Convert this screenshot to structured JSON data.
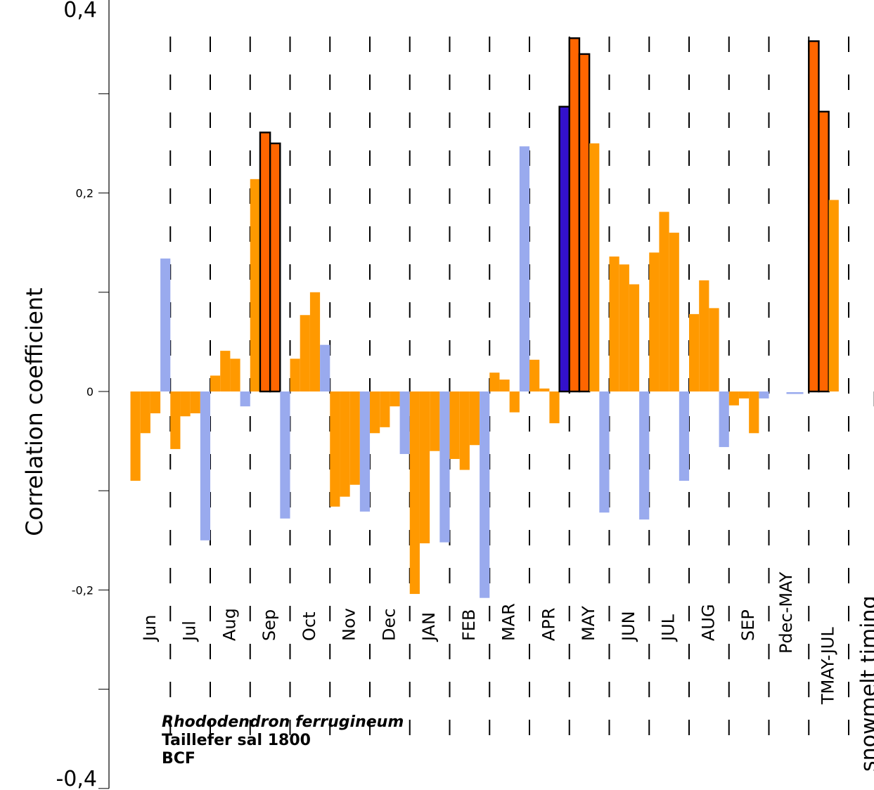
{
  "chart_data": {
    "type": "bar",
    "ylabel": "Correlation coefficient",
    "ylim": [
      -0.4,
      0.4
    ],
    "yticks": [
      {
        "value": 0.4,
        "label": "0,4"
      },
      {
        "value": 0.3,
        "label": ""
      },
      {
        "value": 0.2,
        "label": "0,2"
      },
      {
        "value": 0.1,
        "label": ""
      },
      {
        "value": 0.0,
        "label": "0"
      },
      {
        "value": -0.1,
        "label": ""
      },
      {
        "value": -0.2,
        "label": "-0,2"
      },
      {
        "value": -0.3,
        "label": ""
      },
      {
        "value": -0.4,
        "label": "-0,4"
      }
    ],
    "groups": [
      {
        "label": "Jun",
        "values": [
          -0.09,
          -0.042,
          -0.022,
          0.134
        ]
      },
      {
        "label": "Jul",
        "values": [
          -0.058,
          -0.025,
          -0.022,
          -0.15
        ]
      },
      {
        "label": "Aug",
        "values": [
          0.016,
          0.041,
          0.033,
          -0.015
        ]
      },
      {
        "label": "Sep",
        "values": [
          0.214,
          0.261,
          0.25,
          -0.128
        ]
      },
      {
        "label": "Oct",
        "values": [
          0.033,
          0.077,
          0.1,
          0.047
        ]
      },
      {
        "label": "Nov",
        "values": [
          -0.116,
          -0.106,
          -0.094,
          -0.121
        ]
      },
      {
        "label": "Dec",
        "values": [
          -0.042,
          -0.036,
          -0.015,
          -0.063
        ]
      },
      {
        "label": "JAN",
        "values": [
          -0.204,
          -0.153,
          -0.06,
          -0.152
        ]
      },
      {
        "label": "FEB",
        "values": [
          -0.068,
          -0.079,
          -0.054,
          -0.208
        ]
      },
      {
        "label": "MAR",
        "values": [
          0.019,
          0.012,
          -0.021,
          0.247
        ]
      },
      {
        "label": "APR",
        "values": [
          0.032,
          0.003,
          -0.032,
          0.287
        ]
      },
      {
        "label": "MAY",
        "values": [
          0.356,
          0.34,
          0.25,
          -0.122
        ]
      },
      {
        "label": "JUN",
        "values": [
          0.136,
          0.128,
          0.108,
          -0.129
        ]
      },
      {
        "label": "JUL",
        "values": [
          0.14,
          0.181,
          0.16,
          -0.09
        ]
      },
      {
        "label": "AUG",
        "values": [
          0.078,
          0.112,
          0.084,
          -0.056
        ]
      },
      {
        "label": "SEP",
        "values": [
          -0.014,
          -0.007,
          -0.042,
          -0.007
        ]
      },
      {
        "label": "Pdec-MAY",
        "values": [
          -0.002
        ]
      },
      {
        "label": "TMAY-JUL",
        "values": [
          0.353,
          0.282,
          0.193
        ]
      },
      {
        "label": "snowmelt timing",
        "values": [
          -0.015
        ]
      }
    ],
    "annotations": [
      {
        "text": "Rhododendron ferrugineum",
        "style": "bold-italic"
      },
      {
        "text": "Taillefer sal 1800",
        "style": "bold"
      },
      {
        "text": "BCF",
        "style": "bold"
      }
    ],
    "significant": [
      {
        "group": "Sep",
        "index": 1
      },
      {
        "group": "Sep",
        "index": 2
      },
      {
        "group": "APR",
        "index": 3
      },
      {
        "group": "MAY",
        "index": 0
      },
      {
        "group": "MAY",
        "index": 1
      },
      {
        "group": "TMAY-JUL",
        "index": 0
      },
      {
        "group": "TMAY-JUL",
        "index": 1
      }
    ],
    "colors": {
      "temperature": "#ff9900",
      "precipitation": "#99aaee",
      "temperature_significant": "#ff6600",
      "precipitation_significant": "#3311cc",
      "snowmelt": "#aaaaaa"
    },
    "grid": "dashed vertical separators"
  }
}
